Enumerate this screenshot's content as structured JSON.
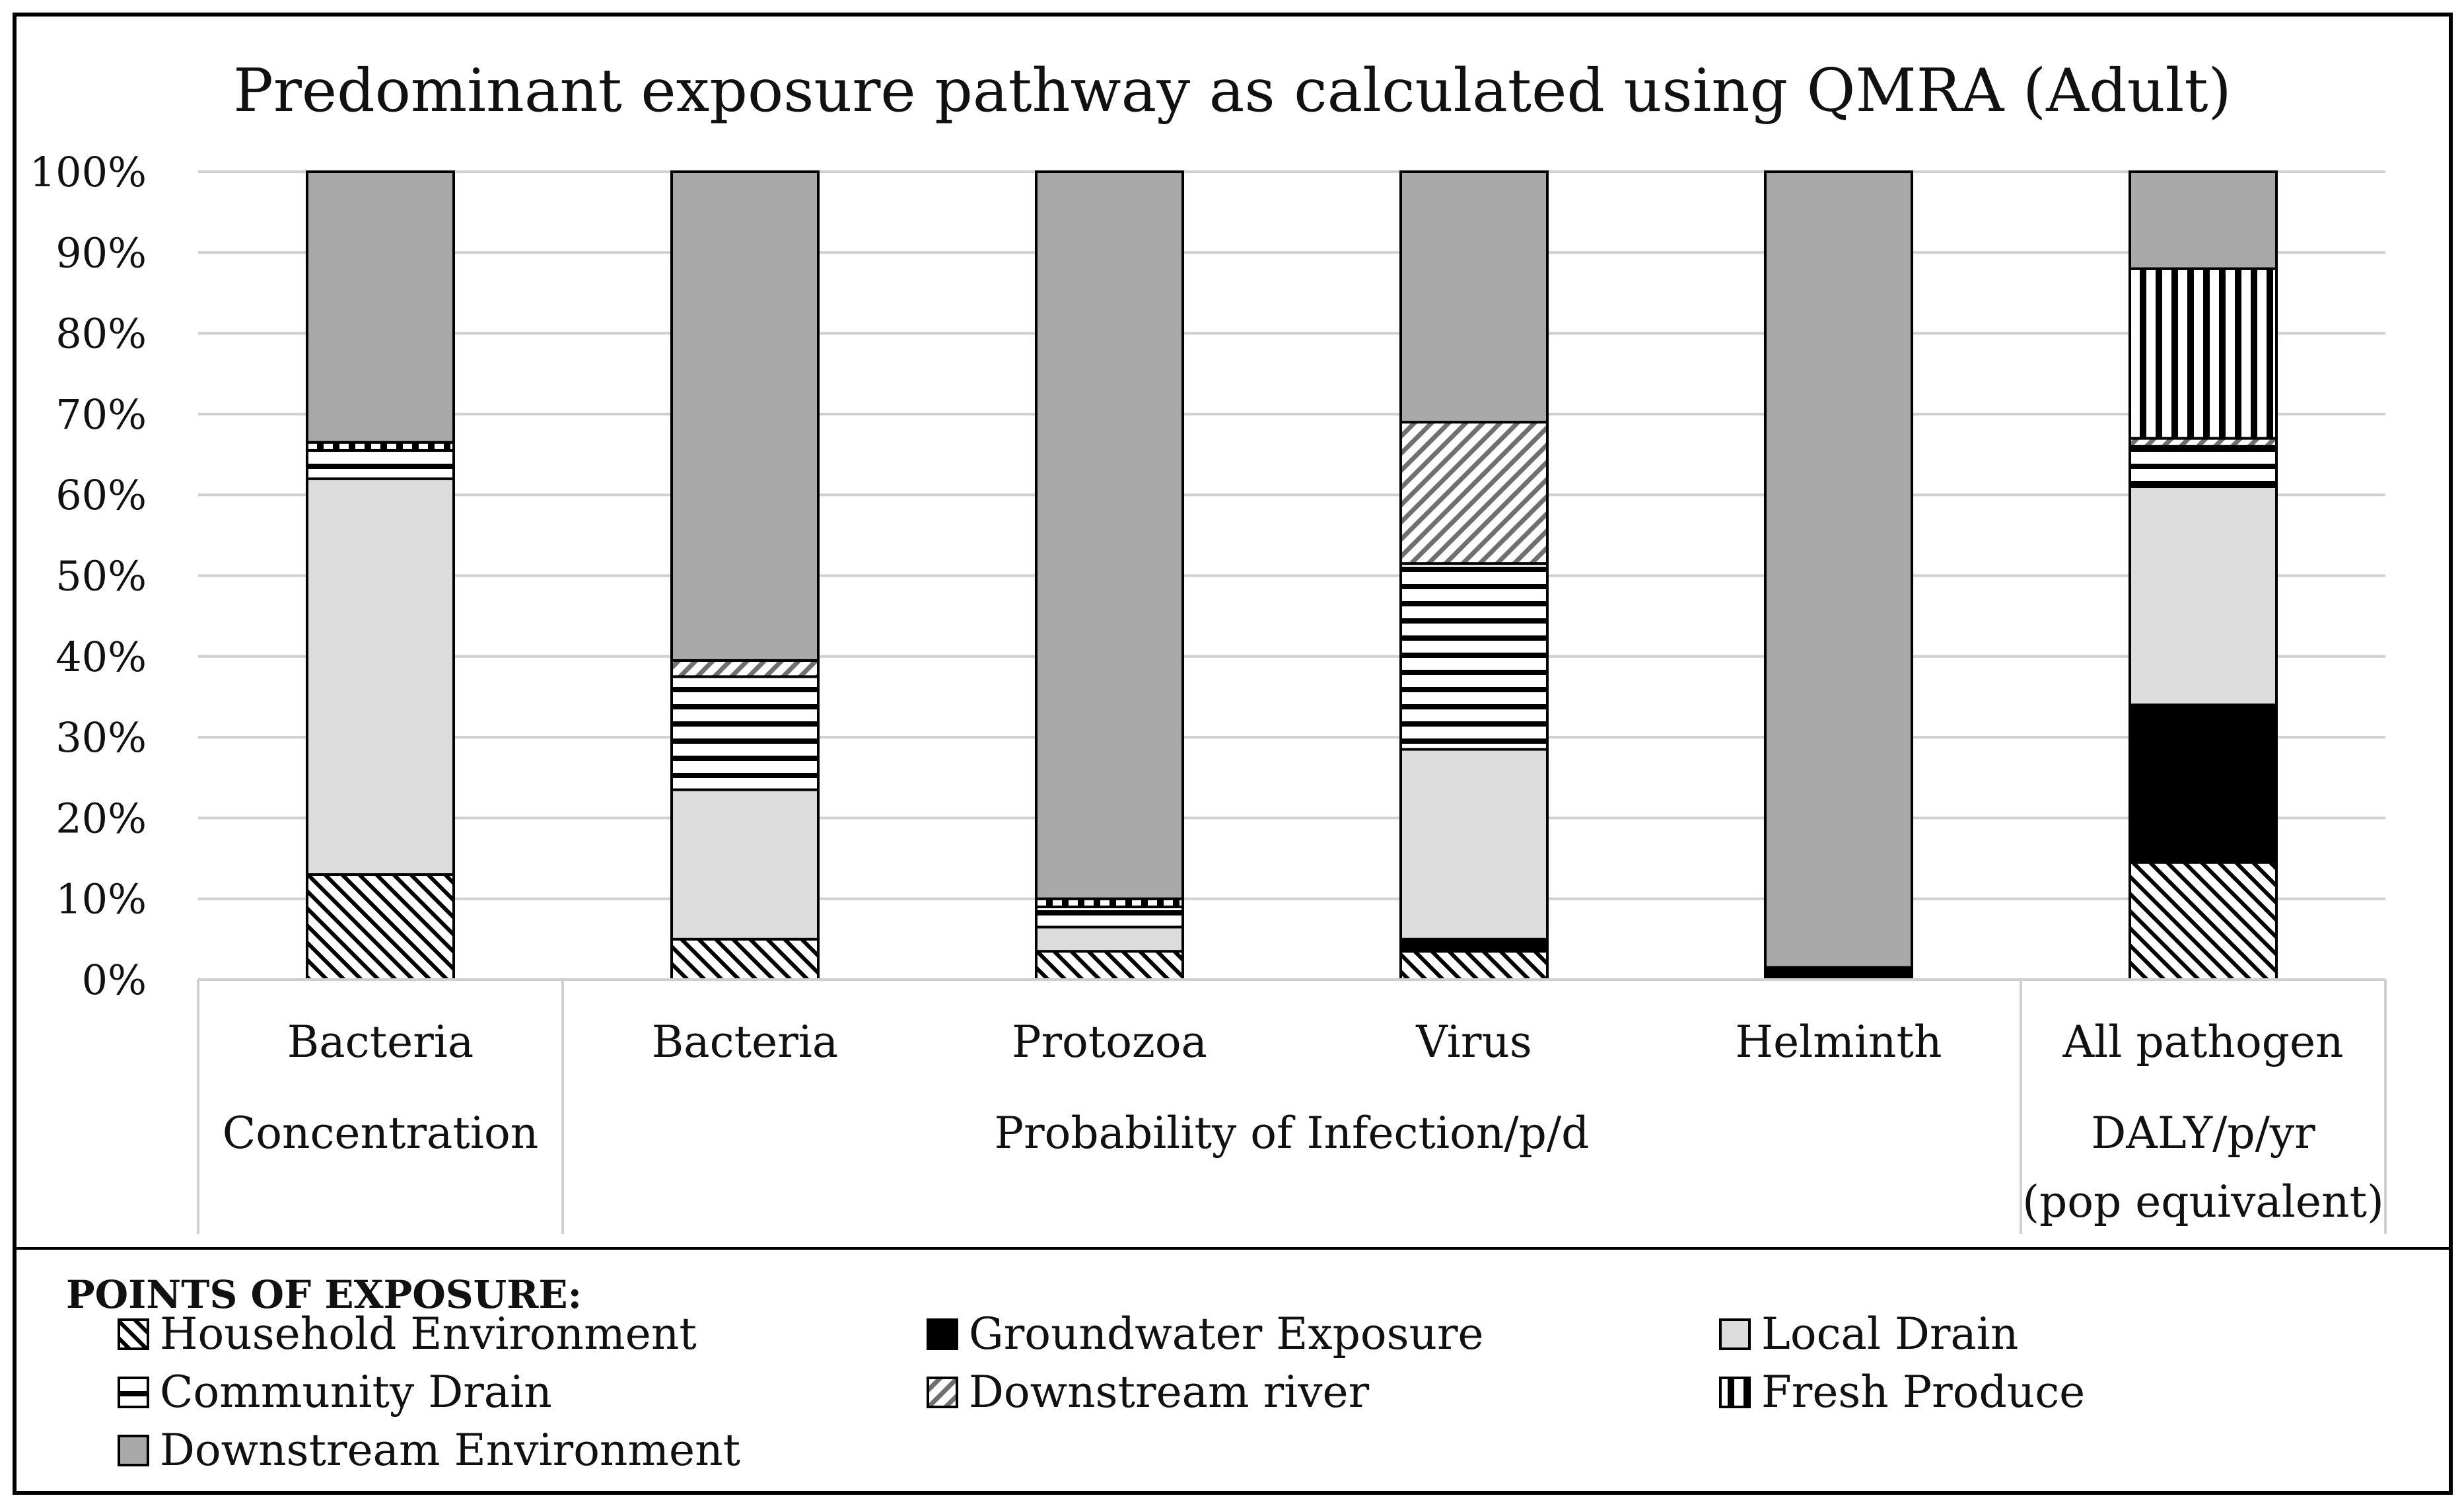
{
  "chart_data": {
    "type": "bar",
    "stacked": true,
    "normalized": true,
    "title": "Predominant exposure pathway as calculated using QMRA (Adult)",
    "y_ticks": [
      "0%",
      "10%",
      "20%",
      "30%",
      "40%",
      "50%",
      "60%",
      "70%",
      "80%",
      "90%",
      "100%"
    ],
    "ylim": [
      0,
      100
    ],
    "grid": true,
    "categories": [
      "Bacteria",
      "Bacteria",
      "Protozoa",
      "Virus",
      "Helminth",
      "All pathogen"
    ],
    "groups": [
      {
        "label": "Concentration",
        "extra": "",
        "categories": [
          0
        ]
      },
      {
        "label": "Probability of Infection/p/d",
        "extra": "",
        "categories": [
          1,
          2,
          3,
          4
        ]
      },
      {
        "label": "DALY/p/yr",
        "extra": "(pop equivalent)",
        "categories": [
          5
        ]
      }
    ],
    "legend_title": "POINTS OF EXPOSURE:",
    "legend_position": "bottom",
    "series": [
      {
        "name": "Household Environment",
        "pattern": "diag-back",
        "values": [
          13,
          5,
          3.5,
          3.5,
          0,
          14.5
        ]
      },
      {
        "name": "Groundwater Exposure",
        "pattern": "solid-black",
        "values": [
          0,
          0,
          0,
          1.5,
          1.5,
          19.5
        ]
      },
      {
        "name": "Local Drain",
        "pattern": "light-gray",
        "values": [
          49,
          18.5,
          3,
          23.5,
          0,
          27
        ]
      },
      {
        "name": "Community Drain",
        "pattern": "horizontal",
        "values": [
          3.5,
          14,
          2.5,
          23,
          0,
          5
        ]
      },
      {
        "name": "Downstream river",
        "pattern": "diag-fwd",
        "values": [
          0,
          2,
          0,
          17.5,
          0,
          1
        ]
      },
      {
        "name": "Fresh Produce",
        "pattern": "vertical",
        "values": [
          1,
          0,
          1,
          0,
          0,
          21
        ]
      },
      {
        "name": "Downstream Environment",
        "pattern": "dark-gray",
        "values": [
          33.5,
          60.5,
          90,
          31,
          98.5,
          12
        ]
      }
    ],
    "colors": {
      "dark_gray": "#a9a9a9",
      "light_gray": "#dcdcdc",
      "black": "#000000",
      "grid": "#d0d0d0"
    }
  }
}
